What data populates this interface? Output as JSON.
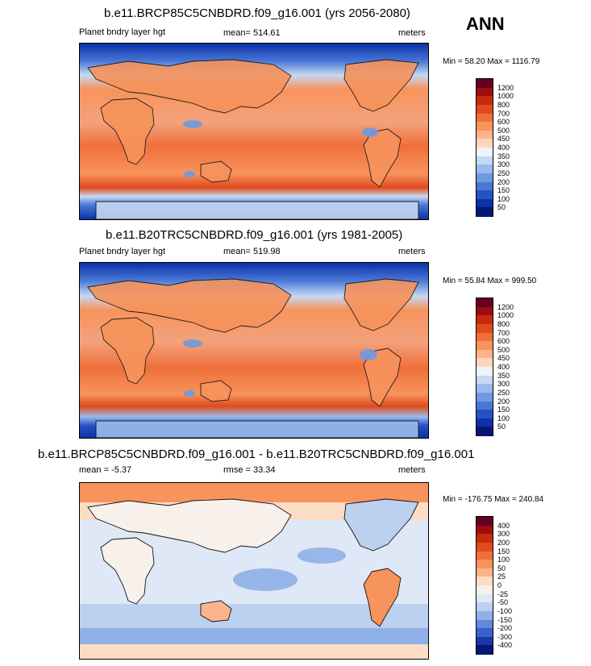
{
  "season": "ANN",
  "panels": [
    {
      "title": "b.e11.BRCP85C5CNBDRD.f09_g16.001 (yrs 2056-2080)",
      "left_label": "Planet bndry layer hgt",
      "center_label": "mean= 514.61",
      "right_label": "meters",
      "minmax": "Min =  58.20 Max = 1116.79",
      "colorbar": {
        "labels": [
          "1200",
          "1000",
          "800",
          "700",
          "600",
          "500",
          "450",
          "400",
          "350",
          "300",
          "250",
          "200",
          "150",
          "100",
          "50"
        ],
        "colors": [
          "#67001f",
          "#9e0c0c",
          "#c82a10",
          "#e04a1c",
          "#ef6f3a",
          "#f7935c",
          "#fbb48c",
          "#fdd7bd",
          "#eef2fa",
          "#c6d8f2",
          "#99bbec",
          "#6e9ae2",
          "#4877d6",
          "#2752c3",
          "#0b31a6",
          "#051673"
        ]
      }
    },
    {
      "title": "b.e11.B20TRC5CNBDRD.f09_g16.001 (yrs 1981-2005)",
      "left_label": "Planet bndry layer hgt",
      "center_label": "mean= 519.98",
      "right_label": "meters",
      "minmax": "Min =  55.84 Max = 999.50",
      "colorbar": {
        "labels": [
          "1200",
          "1000",
          "800",
          "700",
          "600",
          "500",
          "450",
          "400",
          "350",
          "300",
          "250",
          "200",
          "150",
          "100",
          "50"
        ],
        "colors": [
          "#67001f",
          "#9e0c0c",
          "#c82a10",
          "#e04a1c",
          "#ef6f3a",
          "#f7935c",
          "#fbb48c",
          "#fdd7bd",
          "#eef2fa",
          "#c6d8f2",
          "#99bbec",
          "#6e9ae2",
          "#4877d6",
          "#2752c3",
          "#0b31a6",
          "#051673"
        ]
      }
    },
    {
      "title": "b.e11.BRCP85C5CNBDRD.f09_g16.001 - b.e11.B20TRC5CNBDRD.f09_g16.001",
      "left_label": "mean =  -5.37",
      "center_label": "rmse =  33.34",
      "right_label": "meters",
      "minmax": "Min = -176.75 Max = 240.84",
      "colorbar": {
        "labels": [
          "400",
          "300",
          "200",
          "150",
          "100",
          "50",
          "25",
          "0",
          "-25",
          "-50",
          "-100",
          "-150",
          "-200",
          "-300",
          "-400"
        ],
        "colors": [
          "#67001f",
          "#9e0c0c",
          "#c82a10",
          "#e04a1c",
          "#ef6f3a",
          "#f7935c",
          "#fbb48c",
          "#fddcc4",
          "#f8f0ea",
          "#dfe8f6",
          "#bcd0f0",
          "#8fb0e8",
          "#6088dc",
          "#3a5fcc",
          "#1c37a8",
          "#051673"
        ]
      }
    }
  ]
}
